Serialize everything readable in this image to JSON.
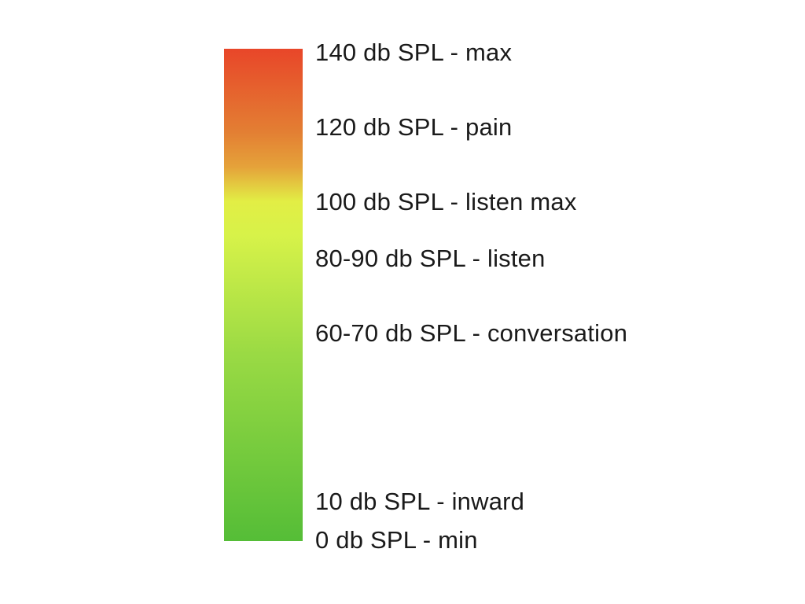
{
  "gradient_colors": {
    "top": "#e84629",
    "orange": "#e37f33",
    "amber": "#e5a23a",
    "yellow": "#e2ee45",
    "lime": "#d7f249",
    "green_mid": "#9ada44",
    "bottom": "#55bd37"
  },
  "levels": [
    {
      "label": "140 db SPL - max"
    },
    {
      "label": "120 db SPL - pain"
    },
    {
      "label": "100 db SPL - listen max"
    },
    {
      "label": "80-90 db SPL - listen"
    },
    {
      "label": "60-70 db SPL - conversation"
    },
    {
      "label": "10 db SPL - inward"
    },
    {
      "label": "0 db SPL - min"
    }
  ]
}
